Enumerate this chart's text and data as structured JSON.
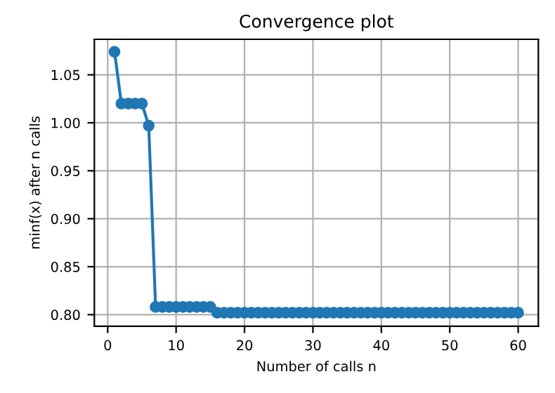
{
  "chart_data": {
    "type": "line",
    "title": "Convergence plot",
    "xlabel": "Number of calls n",
    "ylabel": "minf(x) after n calls",
    "x": [
      1,
      2,
      3,
      4,
      5,
      6,
      7,
      8,
      9,
      10,
      11,
      12,
      13,
      14,
      15,
      16,
      17,
      18,
      19,
      20,
      21,
      22,
      23,
      24,
      25,
      26,
      27,
      28,
      29,
      30,
      31,
      32,
      33,
      34,
      35,
      36,
      37,
      38,
      39,
      40,
      41,
      42,
      43,
      44,
      45,
      46,
      47,
      48,
      49,
      50,
      51,
      52,
      53,
      54,
      55,
      56,
      57,
      58,
      59,
      60
    ],
    "series": [
      {
        "color": "#1f77b4",
        "values": [
          1.074,
          1.02,
          1.02,
          1.02,
          1.02,
          0.997,
          0.808,
          0.808,
          0.808,
          0.808,
          0.808,
          0.808,
          0.808,
          0.808,
          0.808,
          0.802,
          0.802,
          0.802,
          0.802,
          0.802,
          0.802,
          0.802,
          0.802,
          0.802,
          0.802,
          0.802,
          0.802,
          0.802,
          0.802,
          0.802,
          0.802,
          0.802,
          0.802,
          0.802,
          0.802,
          0.802,
          0.802,
          0.802,
          0.802,
          0.802,
          0.802,
          0.802,
          0.802,
          0.802,
          0.802,
          0.802,
          0.802,
          0.802,
          0.802,
          0.802,
          0.802,
          0.802,
          0.802,
          0.802,
          0.802,
          0.802,
          0.802,
          0.802,
          0.802,
          0.802
        ]
      }
    ],
    "xlim": [
      -1.95,
      62.95
    ],
    "ylim": [
      0.788,
      1.087
    ],
    "xticks": [
      0,
      10,
      20,
      30,
      40,
      50,
      60
    ],
    "yticks": [
      {
        "value": 0.8,
        "label": "0.80"
      },
      {
        "value": 0.85,
        "label": "0.85"
      },
      {
        "value": 0.9,
        "label": "0.90"
      },
      {
        "value": 0.95,
        "label": "0.95"
      },
      {
        "value": 1.0,
        "label": "1.00"
      },
      {
        "value": 1.05,
        "label": "1.05"
      }
    ],
    "grid": true,
    "marker": "circle",
    "line_style": "solid"
  }
}
